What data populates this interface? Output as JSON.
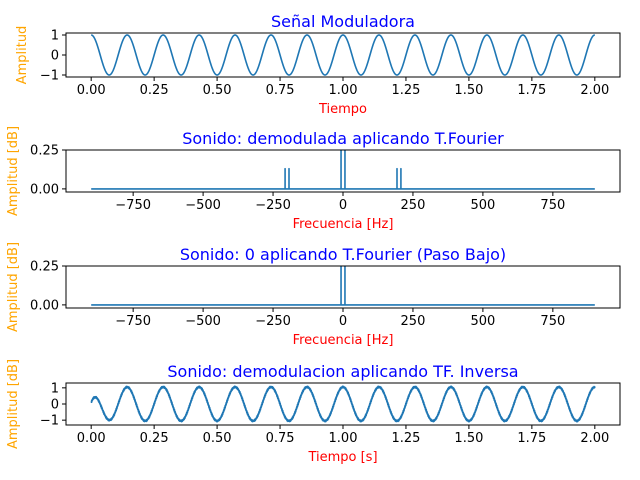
{
  "chart_data": [
    {
      "type": "line",
      "title": "Señal Moduladora",
      "xlabel": "Tiempo",
      "ylabel": "Amplitud",
      "xlim": [
        -0.1,
        2.1
      ],
      "ylim": [
        -1.1,
        1.1
      ],
      "x_ticks": [
        0.0,
        0.25,
        0.5,
        0.75,
        1.0,
        1.25,
        1.5,
        1.75,
        2.0
      ],
      "x_tick_labels": [
        "0.00",
        "0.25",
        "0.50",
        "0.75",
        "1.00",
        "1.25",
        "1.50",
        "1.75",
        "2.00"
      ],
      "y_ticks": [
        1,
        0,
        -1
      ],
      "y_tick_labels": [
        "1",
        "0",
        "−1"
      ],
      "series": [
        {
          "function": "cos",
          "frequency_hz": 7,
          "amplitude": 1,
          "x_start": 0,
          "x_end": 2
        }
      ]
    },
    {
      "type": "line",
      "title": "Sonido: demodulada aplicando T.Fourier",
      "xlabel": "Frecuencia [Hz]",
      "ylabel": "Amplitud [dB]",
      "xlim": [
        -990,
        990
      ],
      "ylim": [
        -0.02,
        0.25
      ],
      "x_ticks": [
        -750,
        -500,
        -250,
        0,
        250,
        500,
        750
      ],
      "x_tick_labels": [
        "−750",
        "−500",
        "−250",
        "0",
        "250",
        "500",
        "750"
      ],
      "y_ticks": [
        0.25,
        0.0
      ],
      "y_tick_labels": [
        "0.25",
        "0.00"
      ],
      "series": [
        {
          "baseline_range": [
            -900,
            900
          ],
          "peaks": [
            {
              "x": -207,
              "y": 0.13
            },
            {
              "x": -193,
              "y": 0.13
            },
            {
              "x": -7,
              "y": 0.25
            },
            {
              "x": 7,
              "y": 0.25
            },
            {
              "x": 193,
              "y": 0.13
            },
            {
              "x": 207,
              "y": 0.13
            }
          ]
        }
      ]
    },
    {
      "type": "line",
      "title": "Sonido: 0 aplicando T.Fourier (Paso Bajo)",
      "xlabel": "Frecuencia [Hz]",
      "ylabel": "Amplitud [dB]",
      "xlim": [
        -990,
        990
      ],
      "ylim": [
        -0.02,
        0.25
      ],
      "x_ticks": [
        -750,
        -500,
        -250,
        0,
        250,
        500,
        750
      ],
      "x_tick_labels": [
        "−750",
        "−500",
        "−250",
        "0",
        "250",
        "500",
        "750"
      ],
      "y_ticks": [
        0.25,
        0.0
      ],
      "y_tick_labels": [
        "0.25",
        "0.00"
      ],
      "series": [
        {
          "baseline_range": [
            -900,
            900
          ],
          "peaks": [
            {
              "x": -7,
              "y": 0.25
            },
            {
              "x": 7,
              "y": 0.25
            }
          ]
        }
      ]
    },
    {
      "type": "line",
      "title": "Sonido: demodulacion aplicando TF. Inversa",
      "xlabel": "Tiempo [s]",
      "ylabel": "Amplitud [dB]",
      "xlim": [
        -0.1,
        2.1
      ],
      "ylim": [
        -1.3,
        1.3
      ],
      "x_ticks": [
        0.0,
        0.25,
        0.5,
        0.75,
        1.0,
        1.25,
        1.5,
        1.75,
        2.0
      ],
      "x_tick_labels": [
        "0.00",
        "0.25",
        "0.50",
        "0.75",
        "1.00",
        "1.25",
        "1.50",
        "1.75",
        "2.00"
      ],
      "y_ticks": [
        1,
        0,
        -1
      ],
      "y_tick_labels": [
        "1",
        "0",
        "−1"
      ],
      "series": [
        {
          "function": "cos",
          "frequency_hz": 7,
          "amplitude": 1.05,
          "x_start": 0,
          "x_end": 2,
          "ripple": true
        }
      ]
    }
  ],
  "colors": {
    "title": "#0000ff",
    "xlabel": "#ff0000",
    "ylabel": "#ffa500",
    "line": "#1f77b4",
    "axes": "#000000"
  }
}
